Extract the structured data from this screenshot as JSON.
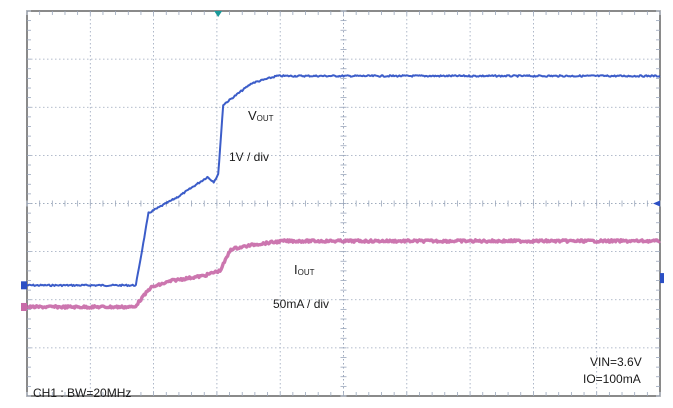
{
  "chart_data": {
    "type": "line",
    "instrument": "oscilloscope",
    "grid": true,
    "x_divisions": 10,
    "y_divisions": 8,
    "series": [
      {
        "name": "VOUT",
        "color": "#2b4fc4",
        "scale": "1V / div",
        "x": [
          0,
          1.72,
          1.92,
          2.4,
          2.85,
          2.95,
          3.02,
          3.1,
          3.2,
          3.55,
          3.95,
          10
        ],
        "y": [
          2.3,
          2.3,
          3.8,
          4.15,
          4.55,
          4.45,
          4.6,
          6.05,
          6.15,
          6.5,
          6.65,
          6.65
        ]
      },
      {
        "name": "IOUT",
        "color": "#c86aa8",
        "scale": "50mA / div",
        "x": [
          0,
          1.7,
          1.95,
          2.3,
          2.8,
          2.98,
          3.05,
          3.22,
          3.6,
          4.05,
          10
        ],
        "y": [
          1.85,
          1.85,
          2.25,
          2.4,
          2.5,
          2.58,
          2.6,
          3.05,
          3.15,
          3.22,
          3.22
        ]
      }
    ]
  },
  "labels": {
    "vout_main": "V",
    "vout_sub": "OUT",
    "vout_scale": "1V / div",
    "iout_main": "I",
    "iout_sub": "OUT",
    "iout_scale": "50mA / div",
    "bandwidth": "CH1 : BW=20MHz",
    "vin": "VIN=3.6V",
    "io": "IO=100mA"
  },
  "colors": {
    "grid": "#9aa6bb",
    "trigger_marker": "#1a9a9a",
    "level_marker": "#2b4fc4"
  }
}
